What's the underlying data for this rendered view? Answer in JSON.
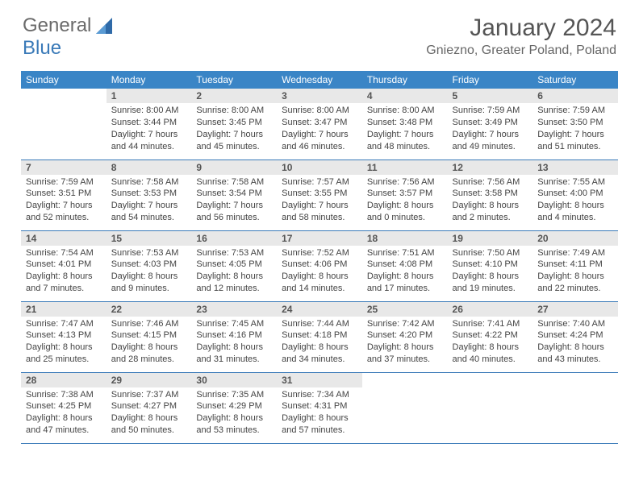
{
  "logo": {
    "text_general": "General",
    "text_blue": "Blue"
  },
  "header": {
    "title": "January 2024",
    "location": "Gniezno, Greater Poland, Poland"
  },
  "colors": {
    "header_bg": "#3a85c6",
    "header_text": "#ffffff",
    "daynum_bg": "#e8e8e8",
    "row_border": "#3a7ab8",
    "body_text": "#444444",
    "title_text": "#555555",
    "logo_gray": "#6a6a6a",
    "logo_blue": "#3a7ab8"
  },
  "typography": {
    "title_fontsize": 30,
    "location_fontsize": 16,
    "weekday_fontsize": 12,
    "daynum_fontsize": 12,
    "cell_fontsize": 11
  },
  "weekdays": [
    "Sunday",
    "Monday",
    "Tuesday",
    "Wednesday",
    "Thursday",
    "Friday",
    "Saturday"
  ],
  "weeks": [
    [
      {
        "day": "",
        "sunrise": "",
        "sunset": "",
        "daylight1": "",
        "daylight2": ""
      },
      {
        "day": "1",
        "sunrise": "Sunrise: 8:00 AM",
        "sunset": "Sunset: 3:44 PM",
        "daylight1": "Daylight: 7 hours",
        "daylight2": "and 44 minutes."
      },
      {
        "day": "2",
        "sunrise": "Sunrise: 8:00 AM",
        "sunset": "Sunset: 3:45 PM",
        "daylight1": "Daylight: 7 hours",
        "daylight2": "and 45 minutes."
      },
      {
        "day": "3",
        "sunrise": "Sunrise: 8:00 AM",
        "sunset": "Sunset: 3:47 PM",
        "daylight1": "Daylight: 7 hours",
        "daylight2": "and 46 minutes."
      },
      {
        "day": "4",
        "sunrise": "Sunrise: 8:00 AM",
        "sunset": "Sunset: 3:48 PM",
        "daylight1": "Daylight: 7 hours",
        "daylight2": "and 48 minutes."
      },
      {
        "day": "5",
        "sunrise": "Sunrise: 7:59 AM",
        "sunset": "Sunset: 3:49 PM",
        "daylight1": "Daylight: 7 hours",
        "daylight2": "and 49 minutes."
      },
      {
        "day": "6",
        "sunrise": "Sunrise: 7:59 AM",
        "sunset": "Sunset: 3:50 PM",
        "daylight1": "Daylight: 7 hours",
        "daylight2": "and 51 minutes."
      }
    ],
    [
      {
        "day": "7",
        "sunrise": "Sunrise: 7:59 AM",
        "sunset": "Sunset: 3:51 PM",
        "daylight1": "Daylight: 7 hours",
        "daylight2": "and 52 minutes."
      },
      {
        "day": "8",
        "sunrise": "Sunrise: 7:58 AM",
        "sunset": "Sunset: 3:53 PM",
        "daylight1": "Daylight: 7 hours",
        "daylight2": "and 54 minutes."
      },
      {
        "day": "9",
        "sunrise": "Sunrise: 7:58 AM",
        "sunset": "Sunset: 3:54 PM",
        "daylight1": "Daylight: 7 hours",
        "daylight2": "and 56 minutes."
      },
      {
        "day": "10",
        "sunrise": "Sunrise: 7:57 AM",
        "sunset": "Sunset: 3:55 PM",
        "daylight1": "Daylight: 7 hours",
        "daylight2": "and 58 minutes."
      },
      {
        "day": "11",
        "sunrise": "Sunrise: 7:56 AM",
        "sunset": "Sunset: 3:57 PM",
        "daylight1": "Daylight: 8 hours",
        "daylight2": "and 0 minutes."
      },
      {
        "day": "12",
        "sunrise": "Sunrise: 7:56 AM",
        "sunset": "Sunset: 3:58 PM",
        "daylight1": "Daylight: 8 hours",
        "daylight2": "and 2 minutes."
      },
      {
        "day": "13",
        "sunrise": "Sunrise: 7:55 AM",
        "sunset": "Sunset: 4:00 PM",
        "daylight1": "Daylight: 8 hours",
        "daylight2": "and 4 minutes."
      }
    ],
    [
      {
        "day": "14",
        "sunrise": "Sunrise: 7:54 AM",
        "sunset": "Sunset: 4:01 PM",
        "daylight1": "Daylight: 8 hours",
        "daylight2": "and 7 minutes."
      },
      {
        "day": "15",
        "sunrise": "Sunrise: 7:53 AM",
        "sunset": "Sunset: 4:03 PM",
        "daylight1": "Daylight: 8 hours",
        "daylight2": "and 9 minutes."
      },
      {
        "day": "16",
        "sunrise": "Sunrise: 7:53 AM",
        "sunset": "Sunset: 4:05 PM",
        "daylight1": "Daylight: 8 hours",
        "daylight2": "and 12 minutes."
      },
      {
        "day": "17",
        "sunrise": "Sunrise: 7:52 AM",
        "sunset": "Sunset: 4:06 PM",
        "daylight1": "Daylight: 8 hours",
        "daylight2": "and 14 minutes."
      },
      {
        "day": "18",
        "sunrise": "Sunrise: 7:51 AM",
        "sunset": "Sunset: 4:08 PM",
        "daylight1": "Daylight: 8 hours",
        "daylight2": "and 17 minutes."
      },
      {
        "day": "19",
        "sunrise": "Sunrise: 7:50 AM",
        "sunset": "Sunset: 4:10 PM",
        "daylight1": "Daylight: 8 hours",
        "daylight2": "and 19 minutes."
      },
      {
        "day": "20",
        "sunrise": "Sunrise: 7:49 AM",
        "sunset": "Sunset: 4:11 PM",
        "daylight1": "Daylight: 8 hours",
        "daylight2": "and 22 minutes."
      }
    ],
    [
      {
        "day": "21",
        "sunrise": "Sunrise: 7:47 AM",
        "sunset": "Sunset: 4:13 PM",
        "daylight1": "Daylight: 8 hours",
        "daylight2": "and 25 minutes."
      },
      {
        "day": "22",
        "sunrise": "Sunrise: 7:46 AM",
        "sunset": "Sunset: 4:15 PM",
        "daylight1": "Daylight: 8 hours",
        "daylight2": "and 28 minutes."
      },
      {
        "day": "23",
        "sunrise": "Sunrise: 7:45 AM",
        "sunset": "Sunset: 4:16 PM",
        "daylight1": "Daylight: 8 hours",
        "daylight2": "and 31 minutes."
      },
      {
        "day": "24",
        "sunrise": "Sunrise: 7:44 AM",
        "sunset": "Sunset: 4:18 PM",
        "daylight1": "Daylight: 8 hours",
        "daylight2": "and 34 minutes."
      },
      {
        "day": "25",
        "sunrise": "Sunrise: 7:42 AM",
        "sunset": "Sunset: 4:20 PM",
        "daylight1": "Daylight: 8 hours",
        "daylight2": "and 37 minutes."
      },
      {
        "day": "26",
        "sunrise": "Sunrise: 7:41 AM",
        "sunset": "Sunset: 4:22 PM",
        "daylight1": "Daylight: 8 hours",
        "daylight2": "and 40 minutes."
      },
      {
        "day": "27",
        "sunrise": "Sunrise: 7:40 AM",
        "sunset": "Sunset: 4:24 PM",
        "daylight1": "Daylight: 8 hours",
        "daylight2": "and 43 minutes."
      }
    ],
    [
      {
        "day": "28",
        "sunrise": "Sunrise: 7:38 AM",
        "sunset": "Sunset: 4:25 PM",
        "daylight1": "Daylight: 8 hours",
        "daylight2": "and 47 minutes."
      },
      {
        "day": "29",
        "sunrise": "Sunrise: 7:37 AM",
        "sunset": "Sunset: 4:27 PM",
        "daylight1": "Daylight: 8 hours",
        "daylight2": "and 50 minutes."
      },
      {
        "day": "30",
        "sunrise": "Sunrise: 7:35 AM",
        "sunset": "Sunset: 4:29 PM",
        "daylight1": "Daylight: 8 hours",
        "daylight2": "and 53 minutes."
      },
      {
        "day": "31",
        "sunrise": "Sunrise: 7:34 AM",
        "sunset": "Sunset: 4:31 PM",
        "daylight1": "Daylight: 8 hours",
        "daylight2": "and 57 minutes."
      },
      {
        "day": "",
        "sunrise": "",
        "sunset": "",
        "daylight1": "",
        "daylight2": ""
      },
      {
        "day": "",
        "sunrise": "",
        "sunset": "",
        "daylight1": "",
        "daylight2": ""
      },
      {
        "day": "",
        "sunrise": "",
        "sunset": "",
        "daylight1": "",
        "daylight2": ""
      }
    ]
  ]
}
